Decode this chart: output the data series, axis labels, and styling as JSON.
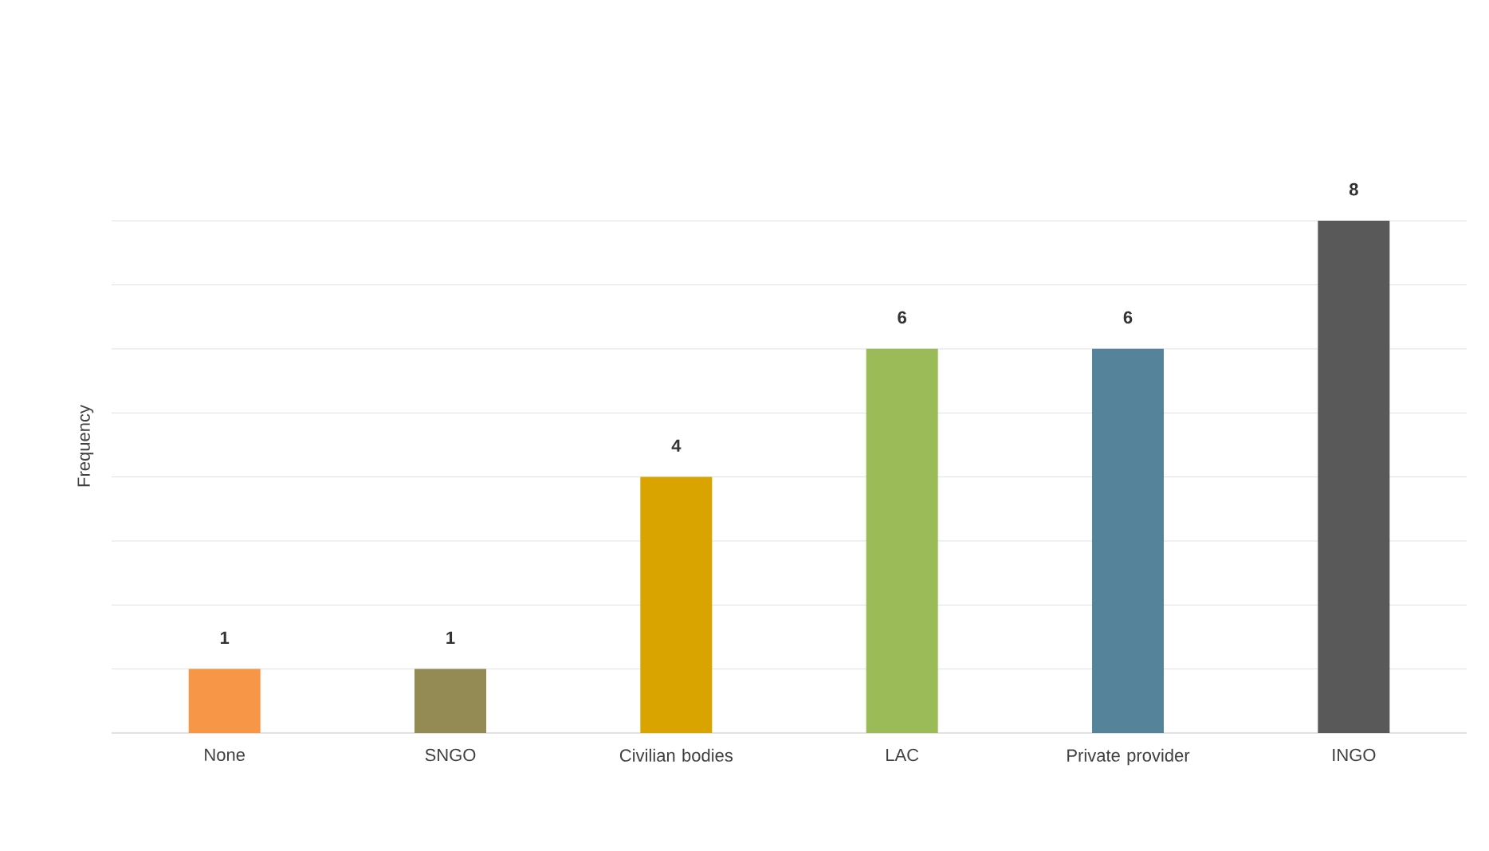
{
  "chart_data": {
    "type": "bar",
    "ylabel": "Frequency",
    "categories": [
      "None",
      "SNGO",
      "Civilian bodies",
      "LAC",
      "Private provider",
      "INGO"
    ],
    "values": [
      1,
      1,
      4,
      6,
      6,
      8
    ],
    "colors": [
      "#f79646",
      "#948a54",
      "#d9a400",
      "#9bbb59",
      "#558399",
      "#595959"
    ],
    "grid": "y",
    "data_labels": true,
    "tick_labels": "x"
  }
}
